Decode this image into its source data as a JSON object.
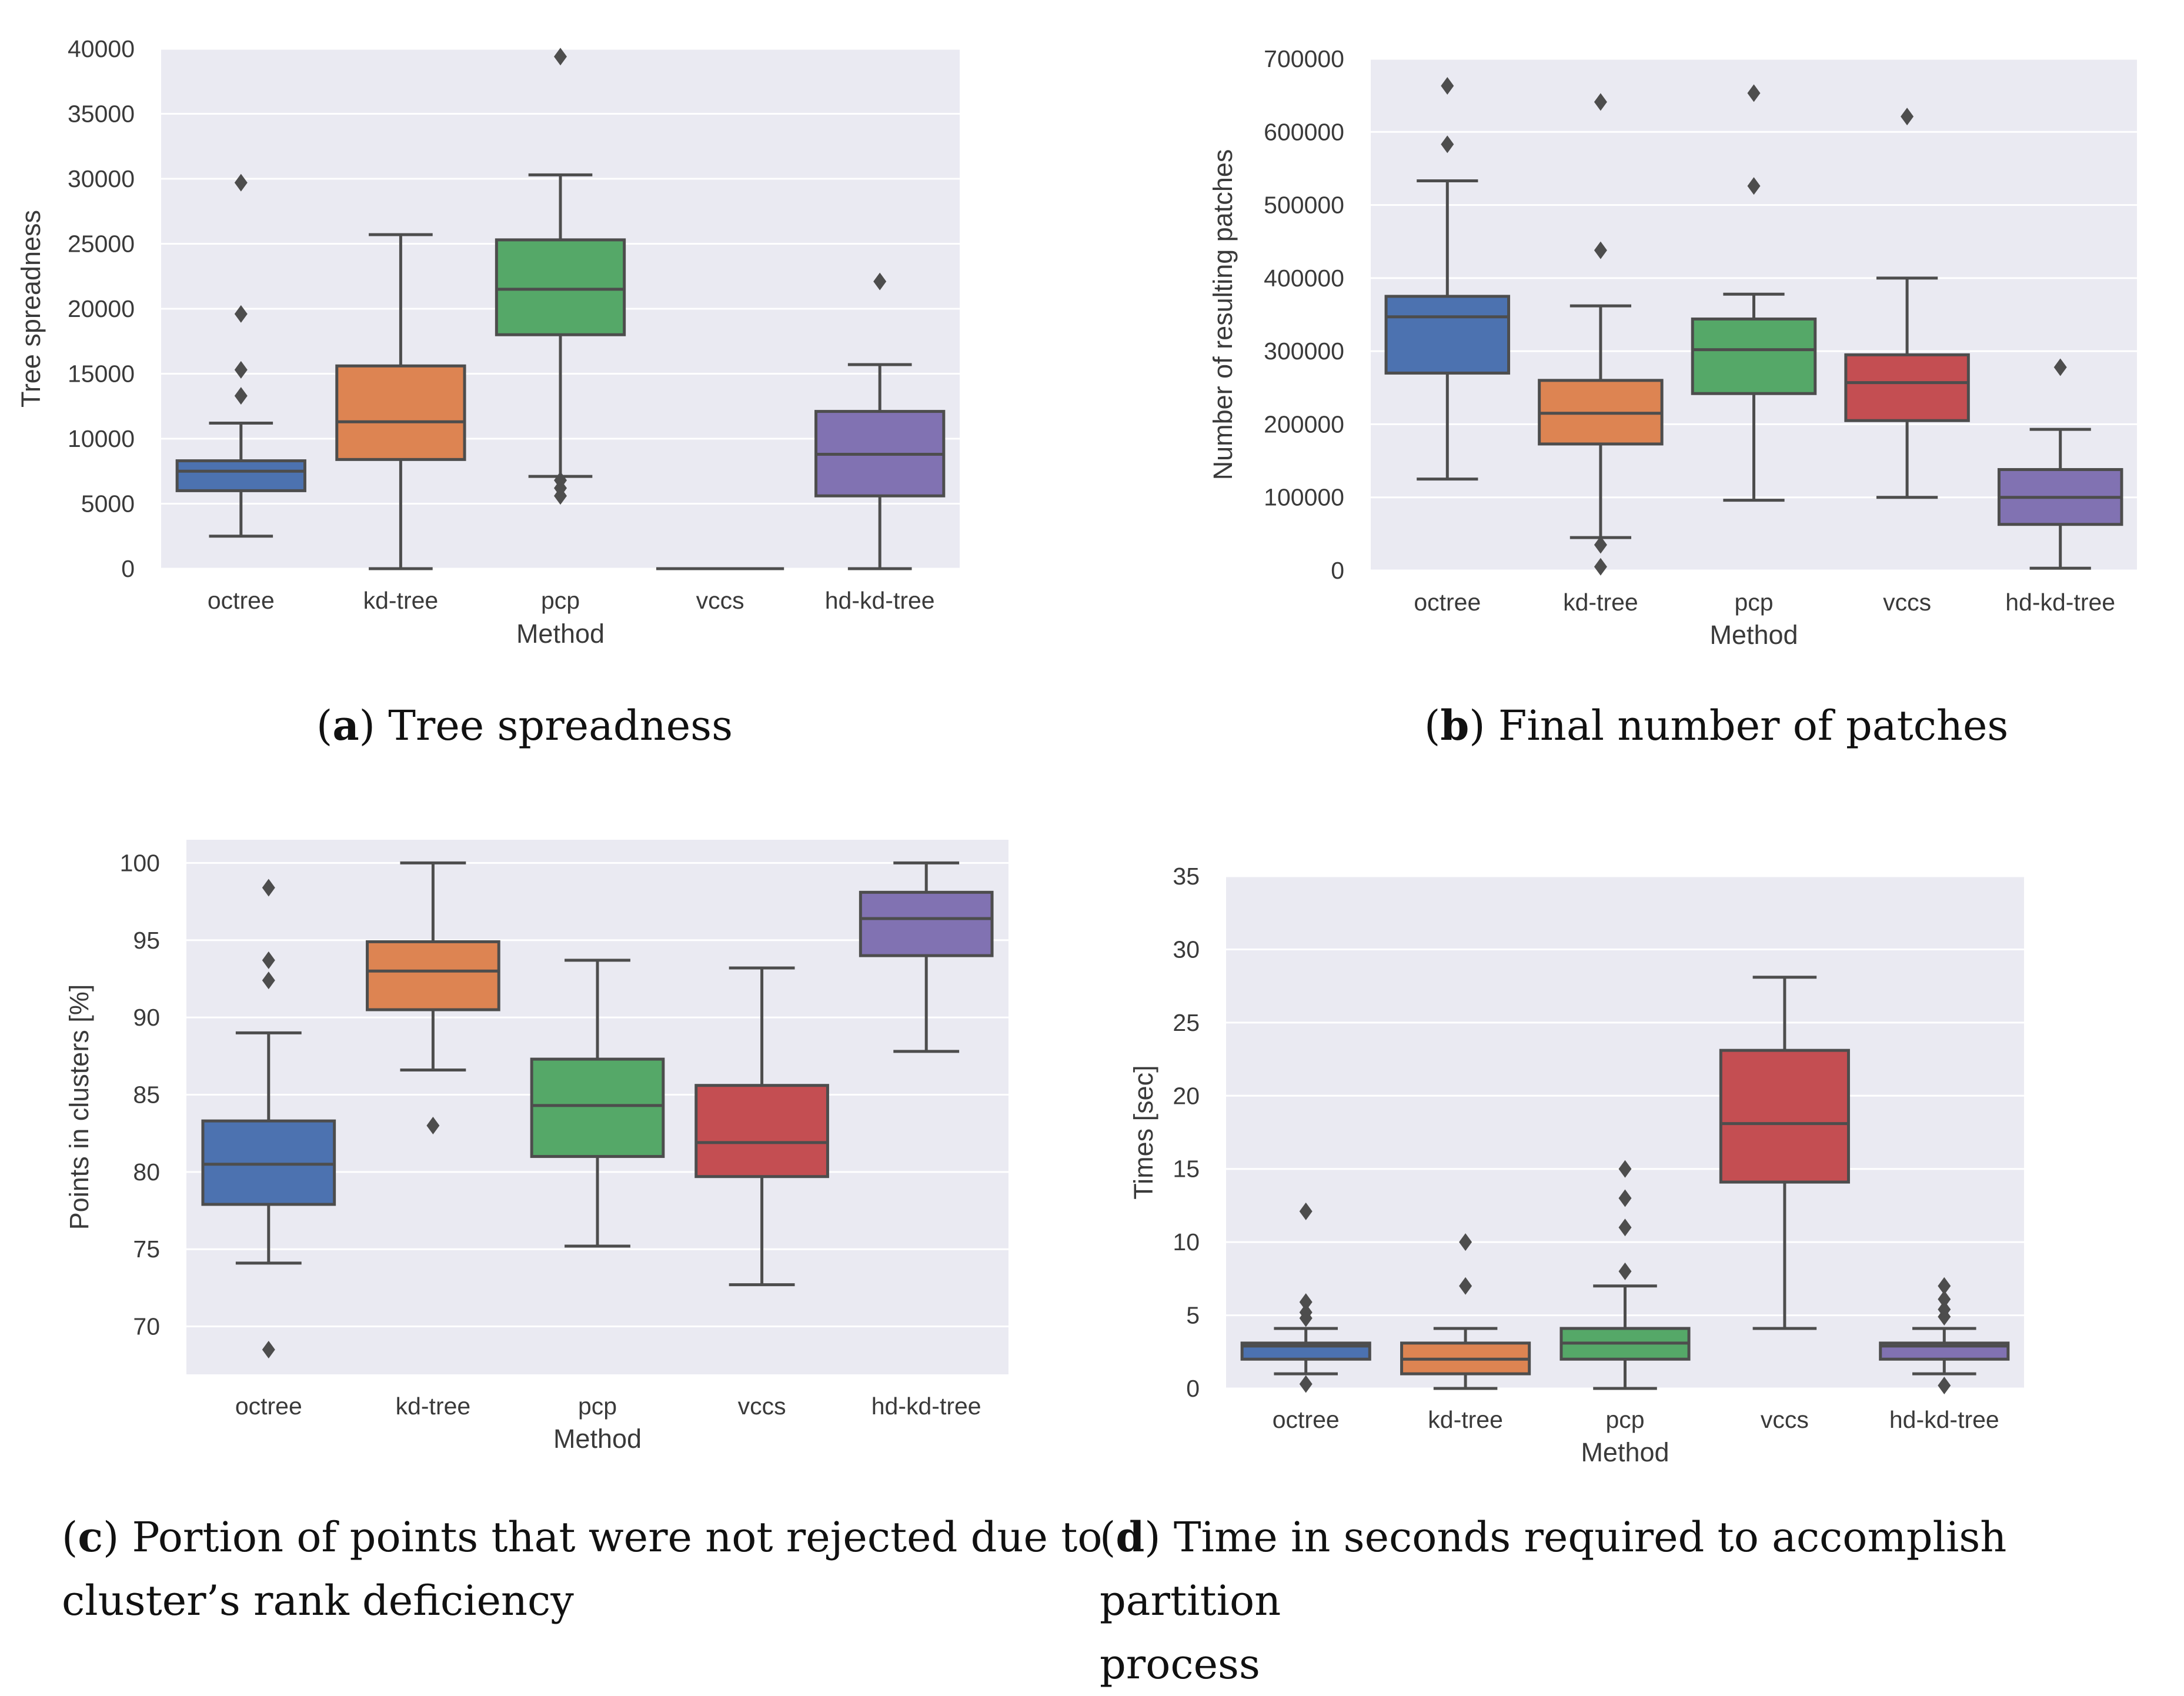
{
  "chart_data": [
    {
      "id": "a",
      "type": "box",
      "caption_letter": "a",
      "caption_text": "Tree spreadness",
      "xlabel": "Method",
      "ylabel": "Tree spreadness",
      "ylim": [
        0,
        40000
      ],
      "yticks": [
        0,
        5000,
        10000,
        15000,
        20000,
        25000,
        30000,
        35000,
        40000
      ],
      "categories": [
        "octree",
        "kd-tree",
        "pcp",
        "vccs",
        "hd-kd-tree"
      ],
      "boxes": [
        {
          "whislo": 2500,
          "q1": 6000,
          "med": 7500,
          "q3": 8300,
          "whishi": 11200,
          "fliers": [
            13300,
            15300,
            19600,
            29700
          ]
        },
        {
          "whislo": 0,
          "q1": 8400,
          "med": 11300,
          "q3": 15600,
          "whishi": 25700,
          "fliers": []
        },
        {
          "whislo": 7100,
          "q1": 18000,
          "med": 21500,
          "q3": 25300,
          "whishi": 30300,
          "fliers": [
            5600,
            6200,
            6800,
            39400
          ]
        },
        {
          "whislo": 0,
          "q1": 0,
          "med": 0,
          "q3": 0,
          "whishi": 0,
          "fliers": []
        },
        {
          "whislo": 0,
          "q1": 5600,
          "med": 8800,
          "q3": 12100,
          "whishi": 15700,
          "fliers": [
            22100
          ]
        }
      ]
    },
    {
      "id": "b",
      "type": "box",
      "caption_letter": "b",
      "caption_text": "Final number of patches",
      "xlabel": "Method",
      "ylabel": "Number of resulting patches",
      "ylim": [
        0,
        700000
      ],
      "yticks": [
        0,
        100000,
        200000,
        300000,
        400000,
        500000,
        600000,
        700000
      ],
      "categories": [
        "octree",
        "kd-tree",
        "pcp",
        "vccs",
        "hd-kd-tree"
      ],
      "boxes": [
        {
          "whislo": 125000,
          "q1": 270000,
          "med": 347000,
          "q3": 375000,
          "whishi": 533000,
          "fliers": [
            583000,
            663000
          ]
        },
        {
          "whislo": 45000,
          "q1": 173000,
          "med": 215000,
          "q3": 260000,
          "whishi": 362000,
          "fliers": [
            5000,
            35000,
            438000,
            641000
          ]
        },
        {
          "whislo": 96000,
          "q1": 242000,
          "med": 302000,
          "q3": 344000,
          "whishi": 378000,
          "fliers": [
            526000,
            653000
          ]
        },
        {
          "whislo": 100000,
          "q1": 205000,
          "med": 257000,
          "q3": 295000,
          "whishi": 400000,
          "fliers": [
            621000
          ]
        },
        {
          "whislo": 3000,
          "q1": 63000,
          "med": 100000,
          "q3": 138000,
          "whishi": 193000,
          "fliers": [
            278000
          ]
        }
      ]
    },
    {
      "id": "c",
      "type": "box",
      "caption_letter": "c",
      "caption_text": "Portion of points that were not rejected due to cluster’s rank deficiency",
      "caption_lines": [
        "Portion of points that were not rejected due to",
        "cluster’s rank deficiency"
      ],
      "xlabel": "Method",
      "ylabel": "Points in clusters [%]",
      "ylim": [
        66.9,
        101.5
      ],
      "yticks": [
        70,
        75,
        80,
        85,
        90,
        95,
        100
      ],
      "categories": [
        "octree",
        "kd-tree",
        "pcp",
        "vccs",
        "hd-kd-tree"
      ],
      "boxes": [
        {
          "whislo": 74.1,
          "q1": 77.9,
          "med": 80.5,
          "q3": 83.3,
          "whishi": 89.0,
          "fliers": [
            68.5,
            92.4,
            93.7,
            98.4
          ]
        },
        {
          "whislo": 86.6,
          "q1": 90.5,
          "med": 93.0,
          "q3": 94.9,
          "whishi": 100.0,
          "fliers": [
            83.0
          ]
        },
        {
          "whislo": 75.2,
          "q1": 81.0,
          "med": 84.3,
          "q3": 87.3,
          "whishi": 93.7,
          "fliers": []
        },
        {
          "whislo": 72.7,
          "q1": 79.7,
          "med": 81.9,
          "q3": 85.6,
          "whishi": 93.2,
          "fliers": []
        },
        {
          "whislo": 87.8,
          "q1": 94.0,
          "med": 96.4,
          "q3": 98.1,
          "whishi": 100.0,
          "fliers": []
        }
      ]
    },
    {
      "id": "d",
      "type": "box",
      "caption_letter": "d",
      "caption_text": "Time in seconds required to accomplish partition process",
      "caption_lines": [
        "Time in seconds required to accomplish partition",
        "process"
      ],
      "xlabel": "Method",
      "ylabel": "Times [sec]",
      "ylim": [
        0,
        35
      ],
      "yticks": [
        0,
        5,
        10,
        15,
        20,
        25,
        30,
        35
      ],
      "categories": [
        "octree",
        "kd-tree",
        "pcp",
        "vccs",
        "hd-kd-tree"
      ],
      "boxes": [
        {
          "whislo": 1,
          "q1": 2,
          "med": 2.9,
          "q3": 3.1,
          "whishi": 4.1,
          "fliers": [
            0.3,
            4.8,
            5.2,
            5.9,
            12.1
          ]
        },
        {
          "whislo": 0,
          "q1": 1,
          "med": 2,
          "q3": 3.1,
          "whishi": 4.1,
          "fliers": [
            7,
            10
          ]
        },
        {
          "whislo": 0,
          "q1": 2,
          "med": 3.1,
          "q3": 4.1,
          "whishi": 7,
          "fliers": [
            8,
            11,
            13,
            15
          ]
        },
        {
          "whislo": 4.1,
          "q1": 14.1,
          "med": 18.1,
          "q3": 23.1,
          "whishi": 28.1,
          "fliers": []
        },
        {
          "whislo": 1,
          "q1": 2,
          "med": 2.9,
          "q3": 3.1,
          "whishi": 4.1,
          "fliers": [
            0.2,
            4.9,
            5.4,
            6.1,
            7
          ]
        }
      ]
    }
  ],
  "colors": {
    "plot_bg": "#eaeaf2",
    "grid": "#ffffff",
    "box_line": "#4d4d4d",
    "boxes": [
      "#4c72b0",
      "#dd8452",
      "#55a868",
      "#c44e52",
      "#8172b2"
    ]
  }
}
